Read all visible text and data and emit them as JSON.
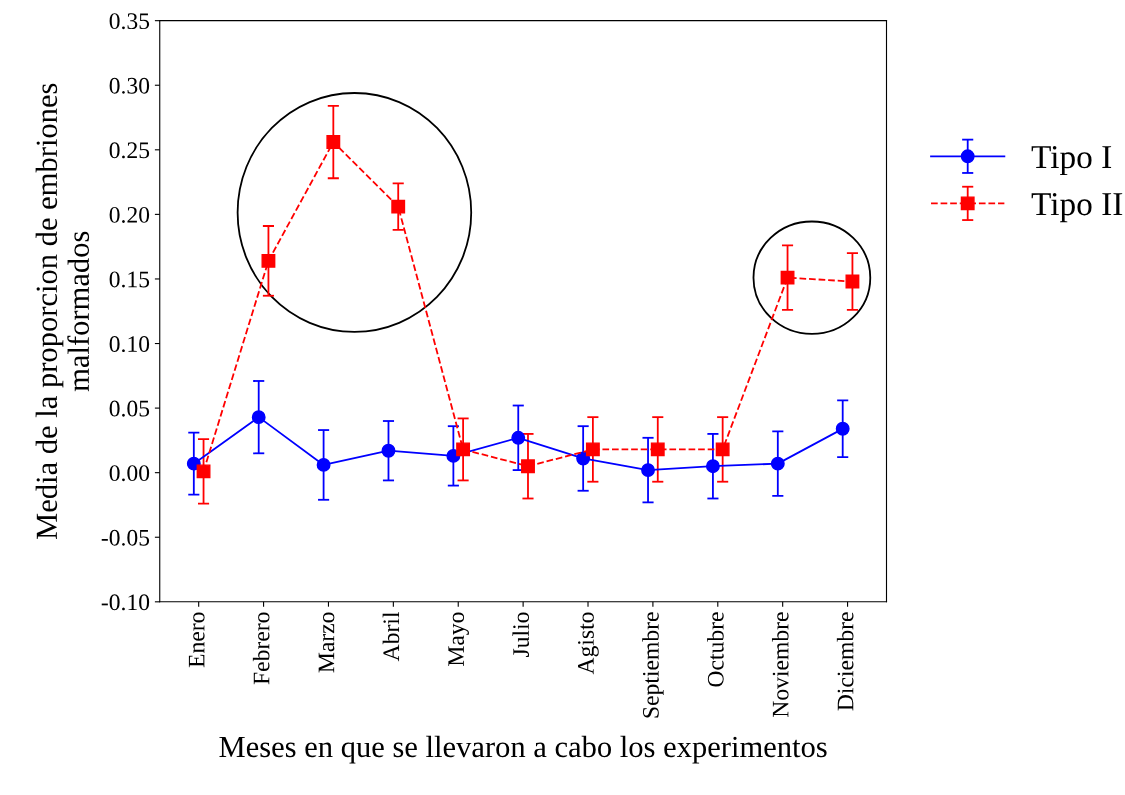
{
  "chart_data": {
    "type": "line",
    "xlabel": "Meses en que se llevaron a cabo los experimentos",
    "ylabel": "Media de la proporcion de embriones\nmalformados",
    "categories": [
      "Enero",
      "Febrero",
      "Marzo",
      "Abril",
      "Mayo",
      "Julio",
      "Agisto",
      "Septiembre",
      "Octubre",
      "Noviembre",
      "Diciembre"
    ],
    "series": [
      {
        "name": "Tipo I",
        "color": "#0000ff",
        "marker": "circle",
        "line_style": "solid",
        "values": [
          0.007,
          0.043,
          0.006,
          0.017,
          0.013,
          0.027,
          0.011,
          0.002,
          0.005,
          0.007,
          0.034
        ],
        "errors": [
          0.024,
          0.028,
          0.027,
          0.023,
          0.023,
          0.025,
          0.025,
          0.025,
          0.025,
          0.025,
          0.022
        ]
      },
      {
        "name": "Tipo II",
        "color": "#ff0000",
        "marker": "square",
        "line_style": "dashed",
        "values": [
          0.001,
          0.164,
          0.256,
          0.206,
          0.018,
          0.005,
          0.018,
          0.018,
          0.018,
          0.151,
          0.148
        ],
        "errors": [
          0.025,
          0.027,
          0.028,
          0.018,
          0.024,
          0.025,
          0.025,
          0.025,
          0.025,
          0.025,
          0.022
        ]
      }
    ],
    "ylim": [
      -0.1,
      0.35
    ],
    "yticks": [
      {
        "value": -0.1,
        "label": "-0.10"
      },
      {
        "value": -0.05,
        "label": "-0.05"
      },
      {
        "value": 0,
        "label": "0.00"
      },
      {
        "value": 0.05,
        "label": "0.05"
      },
      {
        "value": 0.1,
        "label": "0.10"
      },
      {
        "value": 0.15,
        "label": "0.15"
      },
      {
        "value": 0.2,
        "label": "0.20"
      },
      {
        "value": 0.25,
        "label": "0.25"
      },
      {
        "value": 0.3,
        "label": "0.30"
      },
      {
        "value": 0.35,
        "label": "0.35"
      }
    ],
    "grid": false,
    "legend": "right"
  }
}
